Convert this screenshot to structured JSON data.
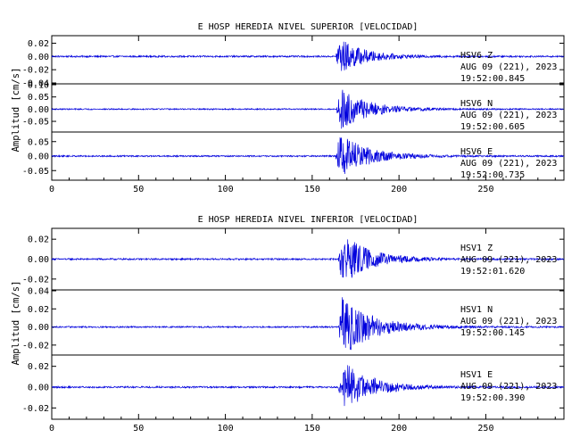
{
  "chart_data": [
    {
      "type": "line",
      "title": "E HOSP HEREDIA NIVEL SUPERIOR [VELOCIDAD]",
      "ylabel": "Amplitud [cm/s]",
      "xlabel": "",
      "xlim": [
        0,
        295
      ],
      "x_ticks": [
        "0",
        "50",
        "100",
        "150",
        "200",
        "250"
      ],
      "colors": {
        "trace": "#0000dd",
        "axes": "#000000"
      },
      "traces": [
        {
          "station": "HSV6",
          "component": "Z",
          "date": "AUG 09 (221), 2023",
          "time": "19:52:00.845",
          "ylim": [
            -0.04,
            0.03
          ],
          "yticks": [
            "0.02",
            "0.00",
            "-0.02",
            "-0.04"
          ],
          "noise": 0.0012,
          "onset": 163.5,
          "peak": 0.028,
          "decay": 14
        },
        {
          "station": "HSV6",
          "component": "N",
          "date": "AUG 09 (221), 2023",
          "time": "19:52:00.605",
          "ylim": [
            -0.09,
            0.1
          ],
          "yticks": [
            "0.10",
            "0.05",
            "0.00",
            "-0.05"
          ],
          "noise": 0.0025,
          "onset": 164,
          "peak": 0.085,
          "decay": 16
        },
        {
          "station": "HSV6",
          "component": "E",
          "date": "AUG 09 (221), 2023",
          "time": "19:52:00.735",
          "ylim": [
            -0.08,
            0.08
          ],
          "yticks": [
            "0.05",
            "0.00",
            "-0.05"
          ],
          "noise": 0.0025,
          "onset": 163.5,
          "peak": 0.075,
          "decay": 17
        }
      ]
    },
    {
      "type": "line",
      "title": "E HOSP HEREDIA NIVEL INFERIOR [VELOCIDAD]",
      "ylabel": "Amplitud [cm/s]",
      "xlabel": "",
      "xlim": [
        0,
        295
      ],
      "x_ticks": [
        "0",
        "50",
        "100",
        "150",
        "200",
        "250"
      ],
      "colors": {
        "trace": "#0000dd",
        "axes": "#000000"
      },
      "traces": [
        {
          "station": "HSV1",
          "component": "Z",
          "date": "AUG 09 (221), 2023",
          "time": "19:52:01.620",
          "ylim": [
            -0.03,
            0.03
          ],
          "yticks": [
            "0.02",
            "0.00",
            "-0.02"
          ],
          "noise": 0.0008,
          "onset": 165,
          "peak": 0.028,
          "decay": 15
        },
        {
          "station": "HSV1",
          "component": "N",
          "date": "AUG 09 (221), 2023",
          "time": "19:52:00.145",
          "ylim": [
            -0.03,
            0.04
          ],
          "yticks": [
            "0.04",
            "0.02",
            "0.00",
            "-0.02"
          ],
          "noise": 0.0008,
          "onset": 165,
          "peak": 0.033,
          "decay": 18
        },
        {
          "station": "HSV1",
          "component": "E",
          "date": "AUG 09 (221), 2023",
          "time": "19:52:00.390",
          "ylim": [
            -0.03,
            0.03
          ],
          "yticks": [
            "0.02",
            "0.00",
            "-0.02"
          ],
          "noise": 0.0008,
          "onset": 165,
          "peak": 0.026,
          "decay": 16
        }
      ]
    }
  ]
}
